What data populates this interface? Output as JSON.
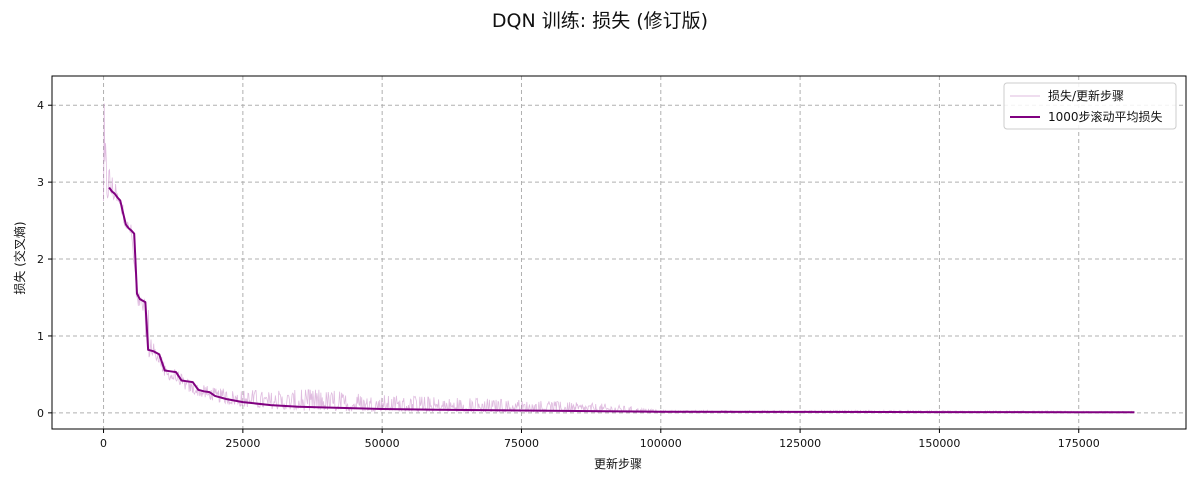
{
  "chart_data": {
    "type": "line",
    "title": "DQN 训练: 损失 (修订版)",
    "xlabel": "更新步骤",
    "ylabel": "损失 (交叉熵)",
    "xlim": [
      -9250,
      194250
    ],
    "ylim": [
      -0.21,
      4.38
    ],
    "x_ticks": [
      0,
      25000,
      50000,
      75000,
      100000,
      125000,
      150000,
      175000
    ],
    "x_tick_labels": [
      "0",
      "25000",
      "50000",
      "75000",
      "100000",
      "125000",
      "150000",
      "175000"
    ],
    "y_ticks": [
      0,
      1,
      2,
      3,
      4
    ],
    "y_tick_labels": [
      "0",
      "1",
      "2",
      "3",
      "4"
    ],
    "grid": true,
    "legend_position": "top-right",
    "legend_entries": [
      "损失/更新步骤",
      "1000步滚动平均损失"
    ],
    "series": [
      {
        "name": "损失/更新步骤",
        "style": "thin translucent line",
        "color": "#c584c5",
        "envelope": {
          "x": [
            0,
            500,
            1000,
            2000,
            3000,
            4000,
            5000,
            6000,
            7000,
            8000,
            9000,
            10000,
            11000,
            13000,
            15000,
            17000,
            20000,
            25000,
            30000,
            35000,
            40000,
            45000,
            50000,
            60000,
            70000,
            80000,
            90000,
            95000,
            100000,
            120000,
            140000,
            160000,
            170000,
            175000,
            185000
          ],
          "high": [
            4.2,
            3.5,
            3.3,
            3.0,
            2.85,
            2.55,
            2.45,
            1.6,
            1.5,
            1.45,
            0.9,
            0.85,
            0.62,
            0.55,
            0.45,
            0.38,
            0.32,
            0.3,
            0.28,
            0.3,
            0.3,
            0.25,
            0.23,
            0.2,
            0.18,
            0.15,
            0.12,
            0.08,
            0.03,
            0.03,
            0.03,
            0.025,
            0.025,
            0.02,
            0.02
          ],
          "low": [
            2.5,
            2.7,
            2.8,
            2.75,
            2.6,
            2.4,
            2.3,
            1.4,
            1.35,
            0.7,
            0.7,
            0.65,
            0.45,
            0.4,
            0.28,
            0.22,
            0.15,
            0.08,
            0.05,
            0.03,
            0.03,
            0.02,
            0.02,
            0.01,
            0.01,
            0.01,
            0.005,
            0.005,
            0.003,
            0.003,
            0.003,
            0.003,
            0.003,
            0.003,
            0.003
          ]
        }
      },
      {
        "name": "1000步滚动平均损失",
        "style": "solid line",
        "color": "#800080",
        "x": [
          1000,
          1500,
          2000,
          2500,
          3000,
          3500,
          4000,
          4500,
          5000,
          5500,
          6000,
          6500,
          7000,
          7500,
          8000,
          8500,
          9000,
          9500,
          10000,
          11000,
          12000,
          13000,
          14000,
          15000,
          16000,
          17000,
          18000,
          19000,
          20000,
          22000,
          25000,
          30000,
          35000,
          40000,
          50000,
          60000,
          75000,
          90000,
          100000,
          125000,
          150000,
          175000,
          185000
        ],
        "y": [
          2.93,
          2.88,
          2.85,
          2.8,
          2.76,
          2.6,
          2.45,
          2.4,
          2.37,
          2.33,
          1.55,
          1.48,
          1.46,
          1.44,
          0.82,
          0.81,
          0.8,
          0.78,
          0.76,
          0.55,
          0.54,
          0.53,
          0.42,
          0.41,
          0.4,
          0.3,
          0.28,
          0.27,
          0.22,
          0.18,
          0.14,
          0.1,
          0.08,
          0.07,
          0.05,
          0.04,
          0.03,
          0.02,
          0.015,
          0.012,
          0.01,
          0.008,
          0.008
        ]
      }
    ]
  }
}
